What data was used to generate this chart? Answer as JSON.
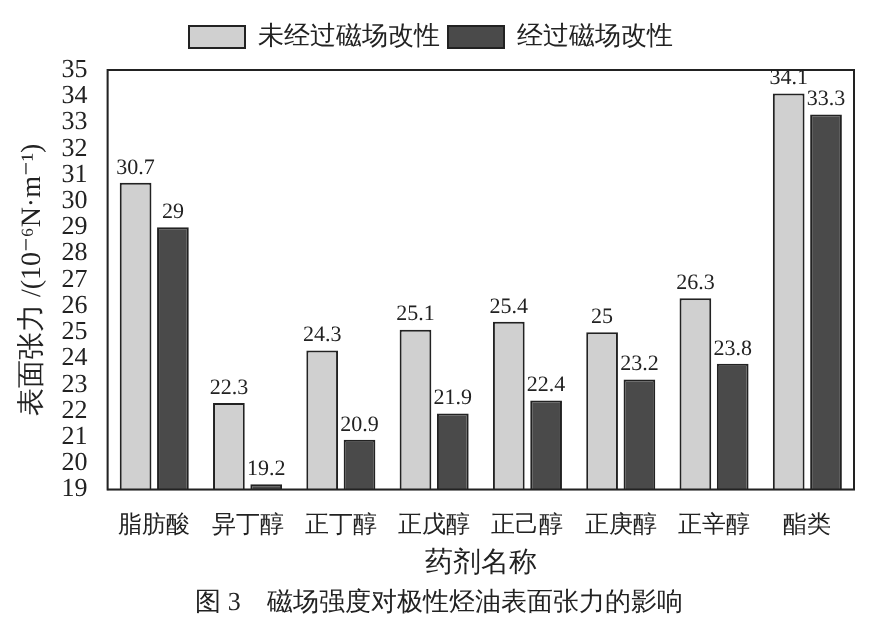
{
  "chart_data": {
    "type": "bar",
    "xlabel": "药剂名称",
    "ylabel": "表面张力 /(10⁻⁶N·m⁻¹)",
    "annotations": [
      "图 3　磁场强度对极性烃油表面张力的影响"
    ],
    "categories": [
      "脂肪酸",
      "异丁醇",
      "正丁醇",
      "正戊醇",
      "正己醇",
      "正庚醇",
      "正辛醇",
      "酯类"
    ],
    "series": [
      {
        "name": "未经过磁场改性",
        "color": "#d0d0d0",
        "values": [
          30.7,
          22.3,
          24.3,
          25.1,
          25.4,
          25,
          26.3,
          34.1
        ]
      },
      {
        "name": "经过磁场改性",
        "color": "#4a4a4a",
        "values": [
          29,
          19.2,
          20.9,
          21.9,
          22.4,
          23.2,
          23.8,
          33.3
        ]
      }
    ],
    "ylim": [
      19,
      35
    ],
    "yticks": [
      19,
      20,
      21,
      22,
      23,
      24,
      25,
      26,
      27,
      28,
      29,
      30,
      31,
      32,
      33,
      34,
      35
    ],
    "grid": false,
    "legend": "top",
    "data_labels": true
  }
}
